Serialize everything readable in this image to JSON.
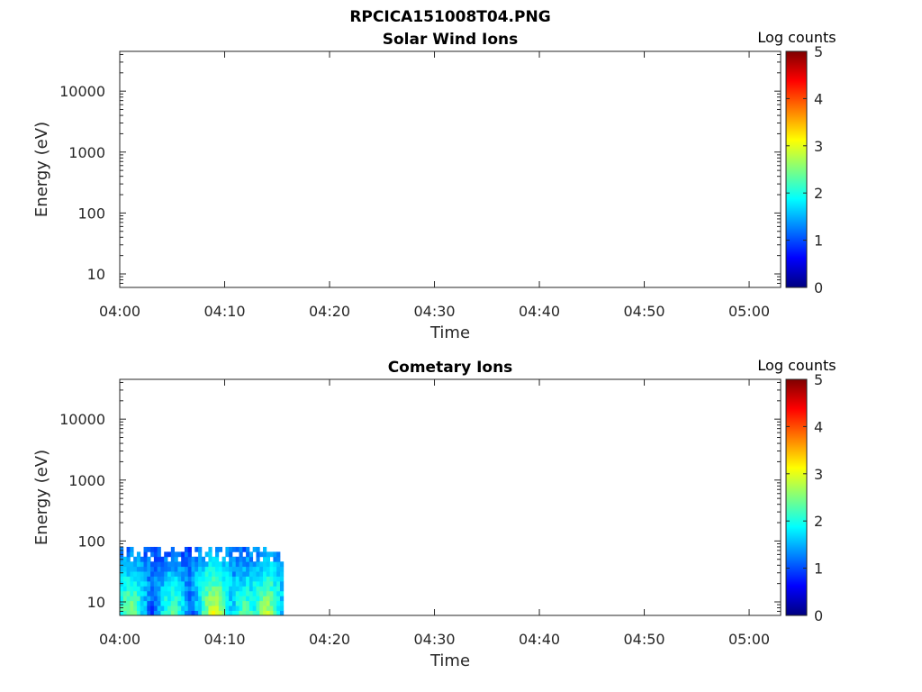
{
  "figure_title": "RPCICA151008T04.PNG",
  "colormap": [
    "#00007f",
    "#0000ff",
    "#007fff",
    "#00ffff",
    "#7fff7f",
    "#ffff00",
    "#ff7f00",
    "#ff0000",
    "#7f0000"
  ],
  "chart_data": [
    {
      "type": "heatmap",
      "title": "Solar Wind Ions",
      "xlabel": "Time",
      "ylabel": "Energy (eV)",
      "yscale": "log",
      "xlim": [
        "04:00",
        "05:03"
      ],
      "ylim": [
        6,
        45000
      ],
      "xticks": [
        "04:00",
        "04:10",
        "04:20",
        "04:30",
        "04:40",
        "04:50",
        "05:00"
      ],
      "yticks": [
        10,
        100,
        1000,
        10000
      ],
      "ytick_labels": [
        "10",
        "100",
        "1000",
        "10000"
      ],
      "colorbar": {
        "label": "Log counts",
        "range": [
          0,
          5
        ],
        "ticks": [
          "0",
          "1",
          "2",
          "3",
          "4",
          "5"
        ]
      },
      "data": {
        "time_range": null,
        "energy_range": null,
        "description_values": []
      }
    },
    {
      "type": "heatmap",
      "title": "Cometary Ions",
      "xlabel": "Time",
      "ylabel": "Energy (eV)",
      "yscale": "log",
      "xlim": [
        "04:00",
        "05:03"
      ],
      "ylim": [
        6,
        45000
      ],
      "xticks": [
        "04:00",
        "04:10",
        "04:20",
        "04:30",
        "04:40",
        "04:50",
        "05:00"
      ],
      "yticks": [
        10,
        100,
        1000,
        10000
      ],
      "ytick_labels": [
        "10",
        "100",
        "1000",
        "10000"
      ],
      "colorbar": {
        "label": "Log counts",
        "range": [
          0,
          5
        ],
        "ticks": [
          "0",
          "1",
          "2",
          "3",
          "4",
          "5"
        ]
      },
      "data": {
        "time_range": [
          "04:00",
          "04:15.6"
        ],
        "energy_range": [
          6,
          80
        ],
        "peak_times": [
          "04:01",
          "04:05",
          "04:09",
          "04:12",
          "04:14"
        ],
        "peak_log_counts": [
          2.6,
          2.3,
          3.0,
          2.4,
          2.8
        ]
      }
    }
  ]
}
